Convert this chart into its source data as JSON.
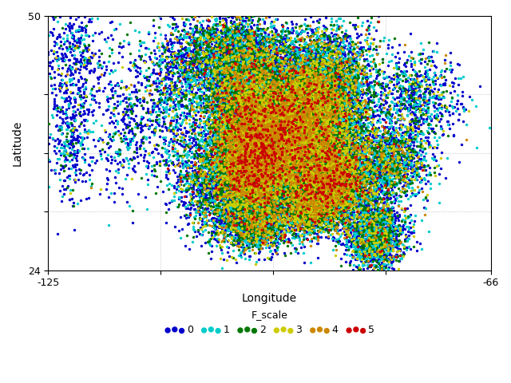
{
  "title": "",
  "xlabel": "Longitude",
  "ylabel": "Latitude",
  "xlim": [
    -125,
    -66
  ],
  "ylim": [
    24,
    50
  ],
  "legend_title": "F_scale",
  "fscale_colors": {
    "0": "#0000cc",
    "1": "#00cccc",
    "2": "#007700",
    "3": "#cccc00",
    "4": "#cc8800",
    "5": "#cc0000"
  },
  "marker_size": 6,
  "background_color": "#ffffff",
  "grid_color": "#aaaaaa",
  "grid_style": ":",
  "fig_width": 6.4,
  "fig_height": 4.8,
  "dpi": 100
}
